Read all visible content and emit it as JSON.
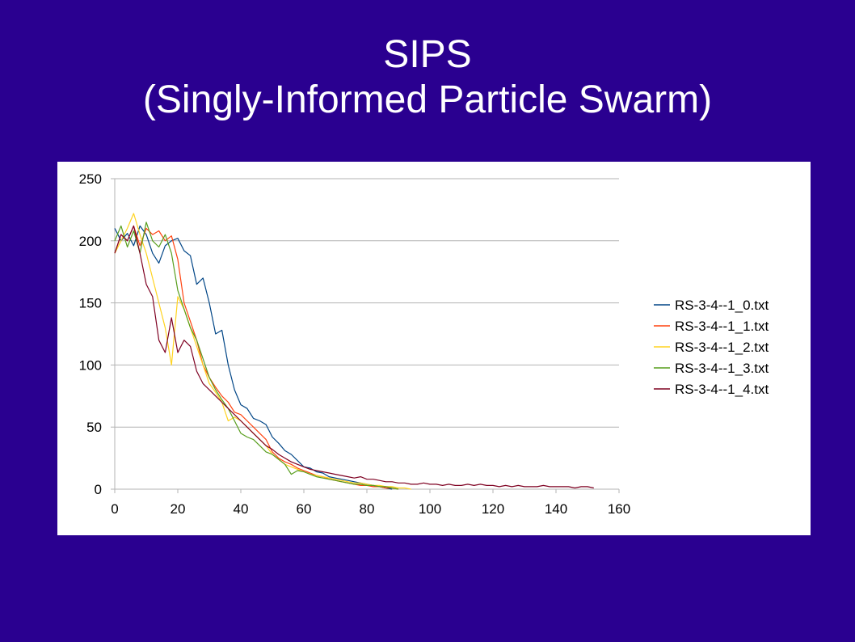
{
  "slide": {
    "title_line1": "SIPS",
    "title_line2": "(Singly-Informed Particle Swarm)"
  },
  "chart_data": {
    "type": "line",
    "title": "",
    "xlabel": "",
    "ylabel": "",
    "xlim": [
      0,
      160
    ],
    "ylim": [
      0,
      250
    ],
    "x_ticks": [
      0,
      20,
      40,
      60,
      80,
      100,
      120,
      140,
      160
    ],
    "y_ticks": [
      0,
      50,
      100,
      150,
      200,
      250
    ],
    "grid": "horizontal",
    "legend_position": "right",
    "series": [
      {
        "name": "RS-3-4--1_0.txt",
        "color": "#004586",
        "x": [
          0,
          2,
          4,
          6,
          8,
          10,
          12,
          14,
          16,
          18,
          20,
          22,
          24,
          26,
          28,
          30,
          32,
          34,
          36,
          38,
          40,
          42,
          44,
          46,
          48,
          50,
          52,
          54,
          56,
          58,
          60,
          62,
          64,
          66,
          68,
          70,
          72,
          74,
          76,
          78,
          80,
          82,
          84,
          86,
          88
        ],
        "y": [
          210,
          200,
          206,
          196,
          212,
          205,
          190,
          182,
          196,
          200,
          202,
          192,
          188,
          165,
          170,
          150,
          125,
          128,
          100,
          80,
          68,
          65,
          57,
          55,
          52,
          42,
          37,
          31,
          28,
          23,
          18,
          17,
          14,
          13,
          10,
          9,
          8,
          7,
          6,
          5,
          4,
          3,
          2,
          1,
          0
        ]
      },
      {
        "name": "RS-3-4--1_1.txt",
        "color": "#ff420e",
        "x": [
          0,
          2,
          4,
          6,
          8,
          10,
          12,
          14,
          16,
          18,
          20,
          22,
          24,
          26,
          28,
          30,
          32,
          34,
          36,
          38,
          40,
          42,
          44,
          46,
          48,
          50,
          52,
          54,
          56,
          58,
          60,
          62,
          64,
          66,
          68,
          70,
          72,
          74,
          76,
          78,
          80,
          82,
          84,
          86,
          88,
          90
        ],
        "y": [
          190,
          205,
          200,
          212,
          196,
          210,
          205,
          208,
          200,
          204,
          185,
          150,
          135,
          120,
          100,
          90,
          82,
          75,
          70,
          62,
          60,
          55,
          50,
          45,
          40,
          30,
          25,
          22,
          20,
          17,
          15,
          13,
          11,
          10,
          8,
          7,
          6,
          5,
          4,
          3,
          3,
          2,
          2,
          1,
          1,
          0
        ]
      },
      {
        "name": "RS-3-4--1_2.txt",
        "color": "#ffd320",
        "x": [
          0,
          2,
          4,
          6,
          8,
          10,
          12,
          14,
          16,
          18,
          20,
          22,
          24,
          26,
          28,
          30,
          32,
          34,
          36,
          38,
          40,
          42,
          44,
          46,
          48,
          50,
          52,
          54,
          56,
          58,
          60,
          62,
          64,
          66,
          68,
          70,
          72,
          74,
          76,
          78,
          80,
          82,
          84,
          86,
          88,
          90,
          92,
          94
        ],
        "y": [
          190,
          200,
          210,
          222,
          205,
          190,
          170,
          150,
          130,
          100,
          155,
          145,
          130,
          115,
          100,
          85,
          78,
          70,
          55,
          58,
          55,
          50,
          45,
          40,
          35,
          28,
          24,
          20,
          18,
          16,
          14,
          12,
          11,
          10,
          9,
          8,
          7,
          6,
          5,
          5,
          4,
          3,
          3,
          2,
          2,
          1,
          1,
          0
        ]
      },
      {
        "name": "RS-3-4--1_3.txt",
        "color": "#579d1c",
        "x": [
          0,
          2,
          4,
          6,
          8,
          10,
          12,
          14,
          16,
          18,
          20,
          22,
          24,
          26,
          28,
          30,
          32,
          34,
          36,
          38,
          40,
          42,
          44,
          46,
          48,
          50,
          52,
          54,
          56,
          58,
          60,
          62,
          64,
          66,
          68,
          70,
          72,
          74,
          76,
          78,
          80,
          82,
          84,
          86,
          88,
          90
        ],
        "y": [
          200,
          212,
          195,
          208,
          190,
          215,
          200,
          195,
          205,
          190,
          160,
          145,
          130,
          120,
          105,
          90,
          80,
          72,
          65,
          55,
          45,
          42,
          40,
          35,
          30,
          28,
          24,
          20,
          12,
          15,
          14,
          12,
          10,
          9,
          8,
          7,
          6,
          5,
          4,
          4,
          3,
          3,
          2,
          2,
          1,
          0
        ]
      },
      {
        "name": "RS-3-4--1_4.txt",
        "color": "#7e0021",
        "x": [
          0,
          2,
          4,
          6,
          8,
          10,
          12,
          14,
          16,
          18,
          20,
          22,
          24,
          26,
          28,
          30,
          32,
          34,
          36,
          38,
          40,
          42,
          44,
          46,
          48,
          50,
          52,
          54,
          56,
          58,
          60,
          62,
          64,
          66,
          68,
          70,
          72,
          74,
          76,
          78,
          80,
          82,
          84,
          86,
          88,
          90,
          92,
          94,
          96,
          98,
          100,
          102,
          104,
          106,
          108,
          110,
          112,
          114,
          116,
          118,
          120,
          122,
          124,
          126,
          128,
          130,
          132,
          134,
          136,
          138,
          140,
          142,
          144,
          146,
          148,
          150,
          152
        ],
        "y": [
          190,
          205,
          200,
          212,
          190,
          165,
          155,
          120,
          110,
          138,
          110,
          120,
          115,
          95,
          85,
          80,
          75,
          70,
          65,
          60,
          55,
          50,
          45,
          40,
          35,
          32,
          28,
          25,
          22,
          20,
          18,
          16,
          15,
          14,
          13,
          12,
          11,
          10,
          9,
          10,
          8,
          8,
          7,
          6,
          6,
          5,
          5,
          4,
          4,
          5,
          4,
          4,
          3,
          4,
          3,
          3,
          4,
          3,
          4,
          3,
          3,
          2,
          3,
          2,
          3,
          2,
          2,
          2,
          3,
          2,
          2,
          2,
          2,
          1,
          2,
          2,
          1
        ]
      }
    ]
  }
}
